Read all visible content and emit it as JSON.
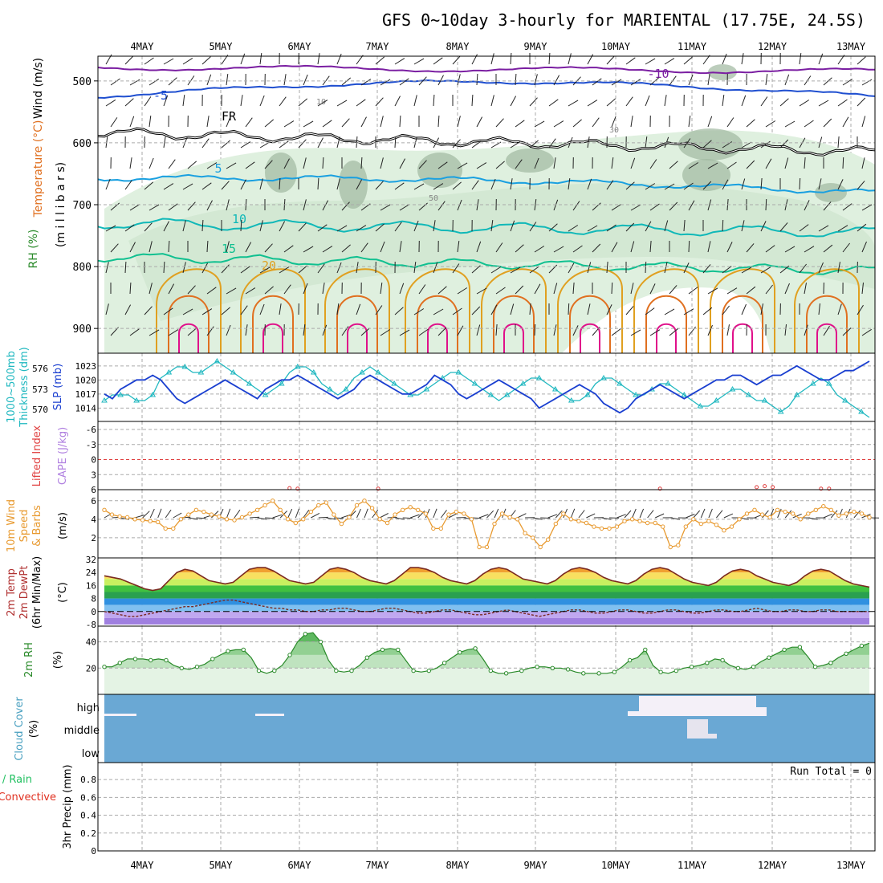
{
  "title": "GFS 0~10day 3-hourly for MARIENTAL (17.75E, 24.5S)",
  "date_labels": [
    "4MAY",
    "5MAY",
    "6MAY",
    "7MAY",
    "8MAY",
    "9MAY",
    "10MAY",
    "11MAY",
    "12MAY",
    "13MAY"
  ],
  "colors": {
    "frame": "#000000",
    "grid": "#aaaaaa",
    "temp_contour_cold": "#7b1fa2",
    "temp_minus5": "#1f4fd0",
    "freezing": "#000000",
    "temp_5": "#1aa0e0",
    "temp_10": "#10b8b8",
    "temp_15": "#10c090",
    "temp_20": "#e0a020",
    "temp_25": "#e07020",
    "temp_30": "#e0108a",
    "rh_light": "#dff0df",
    "rh_mid": "#c8e2c8",
    "rh_dark": "#9fb8a0",
    "slp": "#1a3fd0",
    "thickness": "#20b8c0",
    "wind": "#e89a30",
    "cape": "#b080e0",
    "lifted": "#e04040",
    "temp2m_line": "#7a2a20",
    "dewpt": "#7a2a20",
    "rh2m": "#2a8a2a",
    "cloud_bg": "#6aa8d4",
    "cloud_fill": "#f4f0f8",
    "precip_total": "#20c060",
    "precip_conv": "#e03020"
  },
  "panels": {
    "upper_air": {
      "ylabels": [
        "Wind (m/s)",
        "Temperature (°C)",
        "RH (%)",
        "(m i l l i b a r s)"
      ],
      "yticks": [
        500,
        600,
        700,
        800,
        900
      ],
      "contour_labels": [
        "-10",
        "-5",
        "FR",
        "5",
        "10",
        "15",
        "20",
        "10",
        "30",
        "50"
      ]
    },
    "thickness_slp": {
      "ylabels": [
        "1000~500mb",
        "Thickness (dm)",
        "SLP (mb)"
      ],
      "thickness_ticks": [
        576,
        573,
        570
      ],
      "slp_ticks": [
        1023,
        1020,
        1017,
        1014
      ]
    },
    "instability": {
      "ylabels": [
        "Lifted Index",
        "CAPE (J/kg)"
      ],
      "yticks": [
        -6,
        -3,
        0,
        3,
        6
      ]
    },
    "wind10m": {
      "ylabels": [
        "10m Wind",
        "Speed",
        "& Barbs",
        "(m/s)"
      ],
      "yticks": [
        2,
        4,
        6
      ]
    },
    "temp2m": {
      "ylabels": [
        "2m Temp",
        "2m DewPt",
        "(6hr Min/Max)",
        "(°C)"
      ],
      "yticks": [
        32,
        24,
        16,
        8,
        0,
        -8
      ]
    },
    "rh2m": {
      "ylabels": [
        "2m RH",
        "(%)"
      ],
      "yticks": [
        20,
        40
      ]
    },
    "cloud": {
      "ylabels": [
        "Cloud Cover",
        "(%)"
      ],
      "levels": [
        "high",
        "middle",
        "low"
      ]
    },
    "precip": {
      "ylabels": [
        "Total / Rain",
        "Convective",
        "3hr Precip (mm)"
      ],
      "yticks": [
        0,
        0.2,
        0.4,
        0.6,
        0.8
      ],
      "run_total": "Run Total = 0"
    }
  },
  "chart_data": [
    {
      "type": "line",
      "panel": "thickness_slp",
      "series": [
        {
          "name": "SLP (mb)",
          "values": [
            1017,
            1016,
            1018,
            1019,
            1020,
            1020,
            1021,
            1020,
            1018,
            1016,
            1015,
            1016,
            1017,
            1018,
            1019,
            1020,
            1019,
            1018,
            1017,
            1016,
            1018,
            1019,
            1020,
            1020,
            1021,
            1020,
            1019,
            1018,
            1017,
            1016,
            1017,
            1018,
            1020,
            1021,
            1020,
            1019,
            1018,
            1017,
            1017,
            1018,
            1019,
            1021,
            1020,
            1019,
            1017,
            1016,
            1017,
            1018,
            1019,
            1020,
            1019,
            1018,
            1017,
            1016,
            1014,
            1015,
            1016,
            1017,
            1018,
            1019,
            1018,
            1017,
            1015,
            1014,
            1013,
            1014,
            1016,
            1017,
            1018,
            1019,
            1018,
            1017,
            1016,
            1017,
            1018,
            1019,
            1020,
            1020,
            1021,
            1021,
            1020,
            1019,
            1020,
            1021,
            1021,
            1022,
            1023,
            1022,
            1021,
            1020,
            1020,
            1021,
            1022,
            1022,
            1023,
            1024
          ]
        },
        {
          "name": "Thickness (dm)",
          "values": [
            570,
            571,
            571,
            571,
            570,
            570,
            571,
            574,
            575,
            576,
            576,
            575,
            575,
            576,
            577,
            576,
            575,
            574,
            573,
            572,
            571,
            572,
            573,
            575,
            576,
            576,
            575,
            573,
            572,
            571,
            572,
            574,
            575,
            576,
            575,
            574,
            573,
            572,
            571,
            571,
            572,
            573,
            574,
            575,
            575,
            574,
            573,
            572,
            571,
            570,
            571,
            572,
            573,
            574,
            574,
            573,
            572,
            571,
            570,
            570,
            571,
            573,
            574,
            574,
            573,
            572,
            571,
            571,
            572,
            573,
            573,
            572,
            571,
            570,
            569,
            569,
            570,
            571,
            572,
            572,
            571,
            570,
            570,
            569,
            568,
            569,
            571,
            572,
            573,
            574,
            573,
            571,
            570,
            569,
            568,
            567
          ]
        }
      ]
    },
    {
      "type": "line",
      "panel": "instability",
      "series": [
        {
          "name": "Lifted Index",
          "values": [
            6,
            6,
            6,
            6,
            6,
            6,
            6,
            6,
            6,
            6,
            6,
            6,
            6,
            6,
            6,
            6,
            6,
            6,
            6,
            6,
            6,
            6,
            6,
            5.7,
            5.8,
            6,
            6,
            6,
            6,
            6,
            6,
            6,
            6,
            6,
            5.8,
            6,
            6,
            6,
            6,
            6,
            6,
            6,
            6,
            6,
            6,
            6,
            6,
            6,
            6,
            6,
            6,
            6,
            6,
            6,
            6,
            6,
            6,
            6,
            6,
            6,
            6,
            6,
            6,
            6,
            6,
            6,
            6,
            6,
            6,
            5.8,
            6,
            6,
            6,
            6,
            6,
            6,
            6,
            6,
            6,
            6,
            6,
            5.5,
            5.3,
            5.5,
            6,
            6,
            6,
            6,
            6,
            5.8,
            5.8,
            6,
            6,
            6,
            6,
            6
          ]
        }
      ]
    },
    {
      "type": "line",
      "panel": "wind10m",
      "series": [
        {
          "name": "10m Wind Speed",
          "values": [
            5,
            4.5,
            4.3,
            4.2,
            4,
            3.9,
            3.8,
            3.7,
            3,
            3,
            4,
            4.5,
            5,
            4.8,
            4.5,
            4.3,
            4,
            3.9,
            4.2,
            4.6,
            5,
            5.5,
            6,
            5,
            4,
            3.6,
            4,
            4.8,
            5.5,
            5.8,
            4.5,
            3.5,
            4.2,
            5.5,
            6,
            5.2,
            4,
            3.6,
            4.5,
            5,
            5.3,
            5,
            4.6,
            3,
            3,
            4.5,
            4.8,
            4.6,
            4,
            1,
            1,
            3.5,
            4.6,
            4.2,
            4,
            2.5,
            2,
            1,
            1.8,
            3.5,
            4.6,
            4,
            3.8,
            3.6,
            3.2,
            3,
            3,
            3.2,
            3.8,
            4,
            3.8,
            3.6,
            3.6,
            3.2,
            1,
            1.2,
            3.2,
            4,
            3.5,
            3.8,
            3.4,
            2.8,
            3.2,
            4,
            4.6,
            5,
            4.5,
            4.2,
            5,
            4.8,
            4.6,
            4,
            4.6,
            5,
            5.4,
            5,
            4.4,
            4.6,
            4.8,
            4.6,
            4.2
          ]
        }
      ]
    },
    {
      "type": "area",
      "panel": "temp2m",
      "series": [
        {
          "name": "2m Temp",
          "values": [
            22,
            21,
            20,
            18,
            16,
            14,
            13,
            14,
            19,
            24,
            26,
            25,
            22,
            19,
            18,
            17,
            18,
            22,
            26,
            27,
            27,
            25,
            22,
            19,
            18,
            17,
            18,
            22,
            26,
            27,
            26,
            24,
            21,
            19,
            18,
            17,
            19,
            23,
            27,
            27,
            26,
            24,
            21,
            19,
            18,
            17,
            19,
            23,
            26,
            27,
            26,
            23,
            20,
            19,
            18,
            17,
            19,
            23,
            26,
            27,
            26,
            24,
            21,
            19,
            18,
            17,
            19,
            23,
            26,
            27,
            26,
            23,
            20,
            18,
            17,
            16,
            18,
            22,
            25,
            26,
            25,
            22,
            20,
            18,
            17,
            16,
            18,
            22,
            25,
            26,
            25,
            22,
            19,
            17,
            16,
            15
          ]
        },
        {
          "name": "2m DewPt",
          "values": [
            0,
            -1,
            -2,
            -3,
            -3,
            -2,
            -1,
            0,
            1,
            2,
            3,
            3,
            4,
            5,
            6,
            7,
            7,
            6,
            5,
            4,
            3,
            2,
            2,
            1,
            1,
            0,
            0,
            1,
            1,
            2,
            2,
            1,
            0,
            0,
            1,
            2,
            2,
            1,
            0,
            -1,
            -1,
            0,
            1,
            1,
            0,
            -1,
            -2,
            -2,
            -1,
            0,
            1,
            0,
            -1,
            -2,
            -3,
            -2,
            -1,
            0,
            1,
            1,
            0,
            -1,
            -1,
            0,
            1,
            1,
            0,
            -1,
            -1,
            0,
            1,
            1,
            0,
            -1,
            -1,
            0,
            1,
            1,
            0,
            0,
            1,
            2,
            1,
            0,
            0,
            1,
            1,
            0,
            0,
            1,
            1,
            0,
            0,
            0,
            0,
            0
          ]
        }
      ]
    },
    {
      "type": "area",
      "panel": "rh2m",
      "series": [
        {
          "name": "2m RH",
          "values": [
            21,
            21,
            24,
            27,
            27,
            27,
            26,
            27,
            26,
            22,
            20,
            19,
            21,
            23,
            27,
            30,
            33,
            34,
            34,
            28,
            18,
            16,
            18,
            22,
            30,
            40,
            46,
            47,
            40,
            26,
            18,
            17,
            18,
            22,
            28,
            32,
            34,
            35,
            34,
            26,
            18,
            17,
            18,
            20,
            24,
            28,
            32,
            34,
            35,
            27,
            18,
            16,
            16,
            17,
            18,
            20,
            21,
            21,
            20,
            20,
            19,
            17,
            16,
            16,
            16,
            16,
            17,
            21,
            26,
            28,
            34,
            22,
            17,
            16,
            18,
            20,
            21,
            22,
            24,
            27,
            26,
            22,
            20,
            19,
            21,
            25,
            28,
            31,
            34,
            36,
            36,
            29,
            21,
            22,
            24,
            28,
            31,
            34,
            37,
            39
          ]
        }
      ]
    }
  ]
}
